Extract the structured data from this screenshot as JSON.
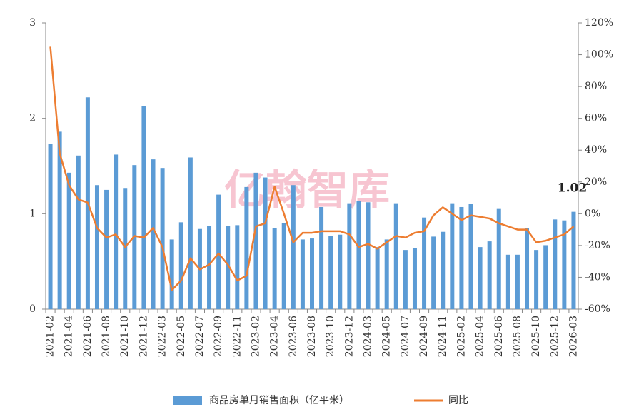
{
  "chart_data": {
    "type": "bar_line",
    "watermark": "亿翰智库",
    "categories": [
      "2021-02",
      null,
      "2021-04",
      null,
      "2021-06",
      null,
      "2021-08",
      null,
      "2021-10",
      null,
      "2021-12",
      null,
      "2022-03",
      null,
      "2022-05",
      null,
      "2022-07",
      null,
      "2022-09",
      null,
      "2022-11",
      null,
      "2023-02",
      null,
      "2023-04",
      null,
      "2023-06",
      null,
      "2023-08",
      null,
      "2023-10",
      null,
      "2023-12",
      null,
      "2024-03",
      null,
      "2024-05",
      null,
      "2024-07",
      null,
      "2024-09",
      null,
      "2024-11",
      null,
      "2025-02",
      null,
      "2025-04",
      null,
      "2025-06",
      null,
      "2025-08",
      null,
      "2025-10",
      null,
      "2025-12",
      null,
      "2026-03"
    ],
    "series": [
      {
        "name": "商品房单月销售面积（亿平米）",
        "color": "#5b9bd5",
        "kind": "bar",
        "axis": "y",
        "values": [
          1.73,
          1.86,
          1.43,
          1.61,
          2.22,
          1.3,
          1.25,
          1.62,
          1.27,
          1.51,
          2.13,
          1.57,
          1.48,
          0.73,
          0.91,
          1.59,
          0.84,
          0.87,
          1.2,
          0.87,
          0.88,
          1.28,
          1.43,
          1.38,
          0.85,
          0.9,
          1.3,
          0.73,
          0.74,
          1.07,
          0.77,
          0.78,
          1.11,
          1.13,
          1.12,
          0.65,
          0.73,
          1.11,
          0.62,
          0.64,
          0.96,
          0.76,
          0.81,
          1.11,
          1.07,
          1.1,
          0.65,
          0.71,
          1.05,
          0.57,
          0.57,
          0.85,
          0.62,
          0.67,
          0.94,
          0.93,
          1.02
        ]
      },
      {
        "name": "同比",
        "color": "#ed7d31",
        "kind": "line",
        "axis": "y2",
        "values": [
          105,
          38,
          18,
          9,
          7,
          -9,
          -15,
          -13,
          -21,
          -14,
          -15,
          -9,
          -21,
          -48,
          -42,
          -28,
          -35,
          -32,
          -25,
          -32,
          -42,
          -39,
          -8,
          -6,
          17,
          0,
          -18,
          -12,
          -12,
          -11,
          -11,
          -11,
          -13,
          -21,
          -19,
          -22,
          -18,
          -14,
          -15,
          -12,
          -11,
          -1,
          4,
          0,
          -4,
          -1,
          -2,
          -3,
          -6,
          -8,
          -10,
          -10,
          -18,
          -17,
          -15,
          -13,
          -8
        ]
      }
    ],
    "ylim": [
      0,
      3
    ],
    "yticks": [
      0,
      1,
      2,
      3
    ],
    "y2lim": [
      -60,
      120
    ],
    "y2ticks": [
      {
        "value": -60,
        "label": "-60%"
      },
      {
        "value": -40,
        "label": "-40%"
      },
      {
        "value": -20,
        "label": "-20%"
      },
      {
        "value": 0,
        "label": "0%"
      },
      {
        "value": 20,
        "label": "20%"
      },
      {
        "value": 40,
        "label": "40%"
      },
      {
        "value": 60,
        "label": "60%"
      },
      {
        "value": 80,
        "label": "80%"
      },
      {
        "value": 100,
        "label": "100%"
      },
      {
        "value": 120,
        "label": "120%"
      }
    ],
    "legend": "bottom"
  }
}
